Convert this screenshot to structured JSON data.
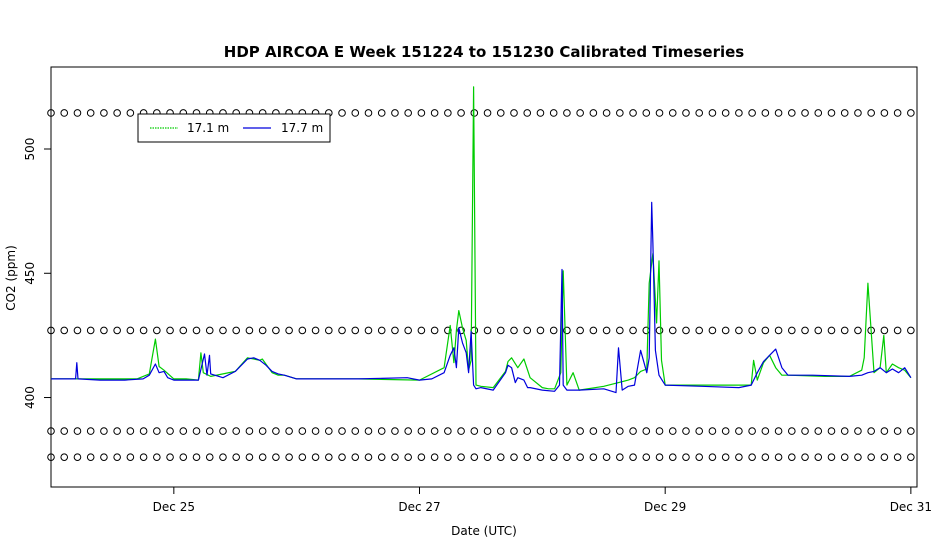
{
  "chart_data": {
    "type": "line",
    "title": "HDP AIRCOA E  Week 151224 to 151230  Calibrated Timeseries",
    "xlabel": "Date (UTC)",
    "ylabel": "CO2 (ppm)",
    "xlim": [
      24.0,
      31.05
    ],
    "ylim": [
      364,
      533
    ],
    "x_ticks": [
      {
        "value": 25,
        "label": "Dec 25"
      },
      {
        "value": 27,
        "label": "Dec 27"
      },
      {
        "value": 29,
        "label": "Dec 29"
      },
      {
        "value": 31,
        "label": "Dec 31"
      }
    ],
    "y_ticks": [
      {
        "value": 400,
        "label": "400"
      },
      {
        "value": 450,
        "label": "450"
      },
      {
        "value": 500,
        "label": "500"
      }
    ],
    "legend": {
      "position": "top-left"
    },
    "series": [
      {
        "name": "17.1 m",
        "color": "#00cc00",
        "style": "line",
        "x": [
          24.0,
          24.3,
          24.7,
          24.8,
          24.85,
          24.88,
          24.92,
          25.0,
          25.1,
          25.2,
          25.22,
          25.24,
          25.3,
          25.5,
          25.6,
          25.7,
          25.72,
          25.8,
          25.85,
          25.9,
          26.0,
          26.5,
          27.0,
          27.2,
          27.25,
          27.28,
          27.3,
          27.32,
          27.35,
          27.38,
          27.4,
          27.42,
          27.44,
          27.46,
          27.5,
          27.6,
          27.7,
          27.72,
          27.75,
          27.8,
          27.85,
          27.9,
          28.0,
          28.05,
          28.1,
          28.15,
          28.17,
          28.2,
          28.25,
          28.3,
          28.5,
          28.7,
          28.75,
          28.8,
          28.85,
          28.87,
          28.9,
          28.93,
          28.95,
          28.97,
          29.0,
          29.3,
          29.7,
          29.72,
          29.75,
          29.8,
          29.85,
          29.9,
          29.95,
          30.0,
          30.3,
          30.5,
          30.6,
          30.62,
          30.65,
          30.7,
          30.75,
          30.78,
          30.8,
          30.85,
          30.9,
          30.95,
          31.0
        ],
        "y": [
          407.5,
          407.5,
          407.5,
          409.5,
          423.5,
          412.5,
          411.0,
          407.5,
          407.5,
          407.0,
          418.0,
          410.0,
          408.5,
          410.5,
          416.0,
          415.0,
          415.5,
          410.0,
          409.0,
          409.0,
          407.5,
          407.5,
          407.0,
          412.0,
          429.0,
          414.0,
          427.0,
          435.0,
          428.0,
          423.0,
          411.0,
          415.0,
          525.0,
          405.0,
          404.5,
          404.0,
          410.5,
          414.5,
          416.0,
          412.0,
          415.5,
          408.0,
          404.0,
          403.5,
          403.5,
          410.0,
          451.0,
          405.0,
          410.0,
          403.0,
          404.5,
          407.0,
          408.0,
          410.5,
          411.5,
          446.0,
          458.0,
          430.0,
          455.0,
          415.0,
          405.0,
          405.0,
          405.0,
          415.0,
          407.0,
          414.0,
          417.0,
          412.0,
          409.0,
          409.0,
          408.5,
          408.5,
          411.0,
          416.0,
          446.0,
          410.0,
          412.0,
          425.0,
          410.0,
          413.5,
          412.0,
          411.0,
          408.0
        ]
      },
      {
        "name": "17.7 m",
        "color": "#0000dd",
        "style": "line",
        "x": [
          24.0,
          24.2,
          24.21,
          24.22,
          24.4,
          24.6,
          24.75,
          24.8,
          24.85,
          24.88,
          24.92,
          24.95,
          25.0,
          25.2,
          25.25,
          25.27,
          25.29,
          25.3,
          25.4,
          25.5,
          25.6,
          25.65,
          25.7,
          25.75,
          25.8,
          25.85,
          25.9,
          26.0,
          26.5,
          26.9,
          27.0,
          27.1,
          27.2,
          27.25,
          27.28,
          27.3,
          27.32,
          27.35,
          27.38,
          27.4,
          27.42,
          27.44,
          27.46,
          27.5,
          27.6,
          27.7,
          27.72,
          27.75,
          27.78,
          27.8,
          27.85,
          27.88,
          27.9,
          28.0,
          28.1,
          28.14,
          28.16,
          28.17,
          28.2,
          28.3,
          28.5,
          28.6,
          28.62,
          28.65,
          28.7,
          28.75,
          28.8,
          28.85,
          28.87,
          28.89,
          28.9,
          28.92,
          28.95,
          29.0,
          29.3,
          29.6,
          29.7,
          29.75,
          29.8,
          29.85,
          29.9,
          29.95,
          30.0,
          30.2,
          30.5,
          30.6,
          30.65,
          30.7,
          30.75,
          30.8,
          30.85,
          30.9,
          30.95,
          31.0
        ],
        "y": [
          407.5,
          407.5,
          414.0,
          407.5,
          407.0,
          407.0,
          407.5,
          409.0,
          413.5,
          410.0,
          410.5,
          408.0,
          407.0,
          407.0,
          417.5,
          409.0,
          417.0,
          409.5,
          408.0,
          410.5,
          415.5,
          416.0,
          415.0,
          413.0,
          410.5,
          409.5,
          409.0,
          407.5,
          407.5,
          408.0,
          407.0,
          407.5,
          410.0,
          417.0,
          420.0,
          412.0,
          428.0,
          422.0,
          418.0,
          410.0,
          426.5,
          405.0,
          403.5,
          404.0,
          403.0,
          410.0,
          413.0,
          412.0,
          406.0,
          408.0,
          407.0,
          404.0,
          404.0,
          403.0,
          402.5,
          405.0,
          451.5,
          405.0,
          403.0,
          403.0,
          403.5,
          402.0,
          420.0,
          403.0,
          404.5,
          405.0,
          419.0,
          410.0,
          416.0,
          478.5,
          462.0,
          419.0,
          409.0,
          405.0,
          404.5,
          404.0,
          405.0,
          410.0,
          414.5,
          417.0,
          419.5,
          412.0,
          409.0,
          409.0,
          408.5,
          409.0,
          410.0,
          410.5,
          412.0,
          410.0,
          411.5,
          410.0,
          412.0,
          408.0
        ]
      },
      {
        "name": "",
        "color": "#000000",
        "style": "points",
        "marker": "open-circle",
        "x_range": [
          24.0,
          31.0
        ],
        "count": 66,
        "levels": [
          514.5,
          427.0,
          386.5,
          376.0
        ]
      }
    ]
  }
}
